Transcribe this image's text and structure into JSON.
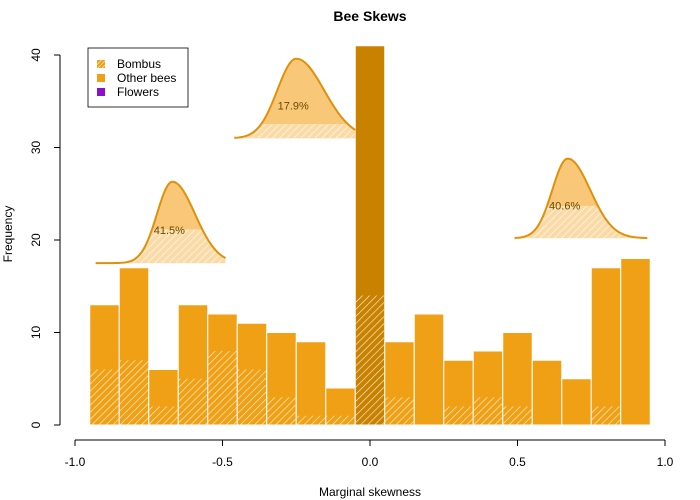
{
  "chart_data": {
    "type": "bar",
    "title": "Bee Skews",
    "xlabel": "Marginal skewness",
    "ylabel": "Frequency",
    "xlim": [
      -1.0,
      1.0
    ],
    "ylim": [
      0,
      40
    ],
    "x_ticks": [
      -1.0,
      -0.5,
      0.0,
      0.5,
      1.0
    ],
    "x_tick_labels": [
      "-1.0",
      "-0.5",
      "0.0",
      "0.5",
      "1.0"
    ],
    "y_ticks": [
      0,
      10,
      20,
      30,
      40
    ],
    "y_tick_labels": [
      "0",
      "10",
      "20",
      "30",
      "40"
    ],
    "grid": false,
    "legend_position": "top-left",
    "legend": [
      {
        "label": "Bombus",
        "style": "hatched",
        "color": "#F0A014"
      },
      {
        "label": "Other bees",
        "style": "solid",
        "color": "#F0A014"
      },
      {
        "label": "Flowers",
        "style": "solid",
        "color": "#8B10C8"
      }
    ],
    "colors": {
      "bees": "#F0A014",
      "center_bar": "#C88200",
      "curve_fill": "#F8C878",
      "curve_line": "#E0900A",
      "flowers": "#8B10C8",
      "label_text": "#6B4A00"
    },
    "bin_edges": [
      -0.95,
      -0.85,
      -0.75,
      -0.65,
      -0.55,
      -0.45,
      -0.35,
      -0.25,
      -0.15,
      -0.05,
      0.05,
      0.15,
      0.25,
      0.35,
      0.45,
      0.55,
      0.65,
      0.75,
      0.85,
      0.95
    ],
    "series": [
      {
        "name": "Bombus",
        "values": [
          6,
          7,
          2,
          5,
          8,
          6,
          3,
          1,
          1,
          14,
          3,
          0,
          2,
          3,
          2,
          0,
          0,
          2,
          0
        ]
      },
      {
        "name": "Other bees",
        "values": [
          7,
          10,
          4,
          8,
          4,
          5,
          7,
          8,
          3,
          27,
          6,
          12,
          5,
          5,
          8,
          7,
          5,
          15,
          18
        ]
      }
    ],
    "totals": [
      13,
      17,
      6,
      13,
      12,
      11,
      10,
      9,
      4,
      41,
      9,
      12,
      7,
      8,
      10,
      7,
      5,
      17,
      18
    ],
    "annotations": [
      {
        "label": "41.5%",
        "region": "negative skew",
        "peak_x": -0.67,
        "spread": 0.065,
        "base_x": [
          -0.93,
          -0.49
        ],
        "base_y": 17.5,
        "height": 8.8,
        "hatch_level": 0.415
      },
      {
        "label": "17.9%",
        "region": "near zero skew",
        "peak_x": -0.25,
        "spread": 0.08,
        "base_x": [
          -0.46,
          -0.05
        ],
        "base_y": 31.0,
        "height": 8.6,
        "hatch_level": 0.179
      },
      {
        "label": "40.6%",
        "region": "positive skew",
        "peak_x": 0.67,
        "spread": 0.065,
        "base_x": [
          0.49,
          0.94
        ],
        "base_y": 20.2,
        "height": 8.6,
        "hatch_level": 0.406
      }
    ]
  }
}
